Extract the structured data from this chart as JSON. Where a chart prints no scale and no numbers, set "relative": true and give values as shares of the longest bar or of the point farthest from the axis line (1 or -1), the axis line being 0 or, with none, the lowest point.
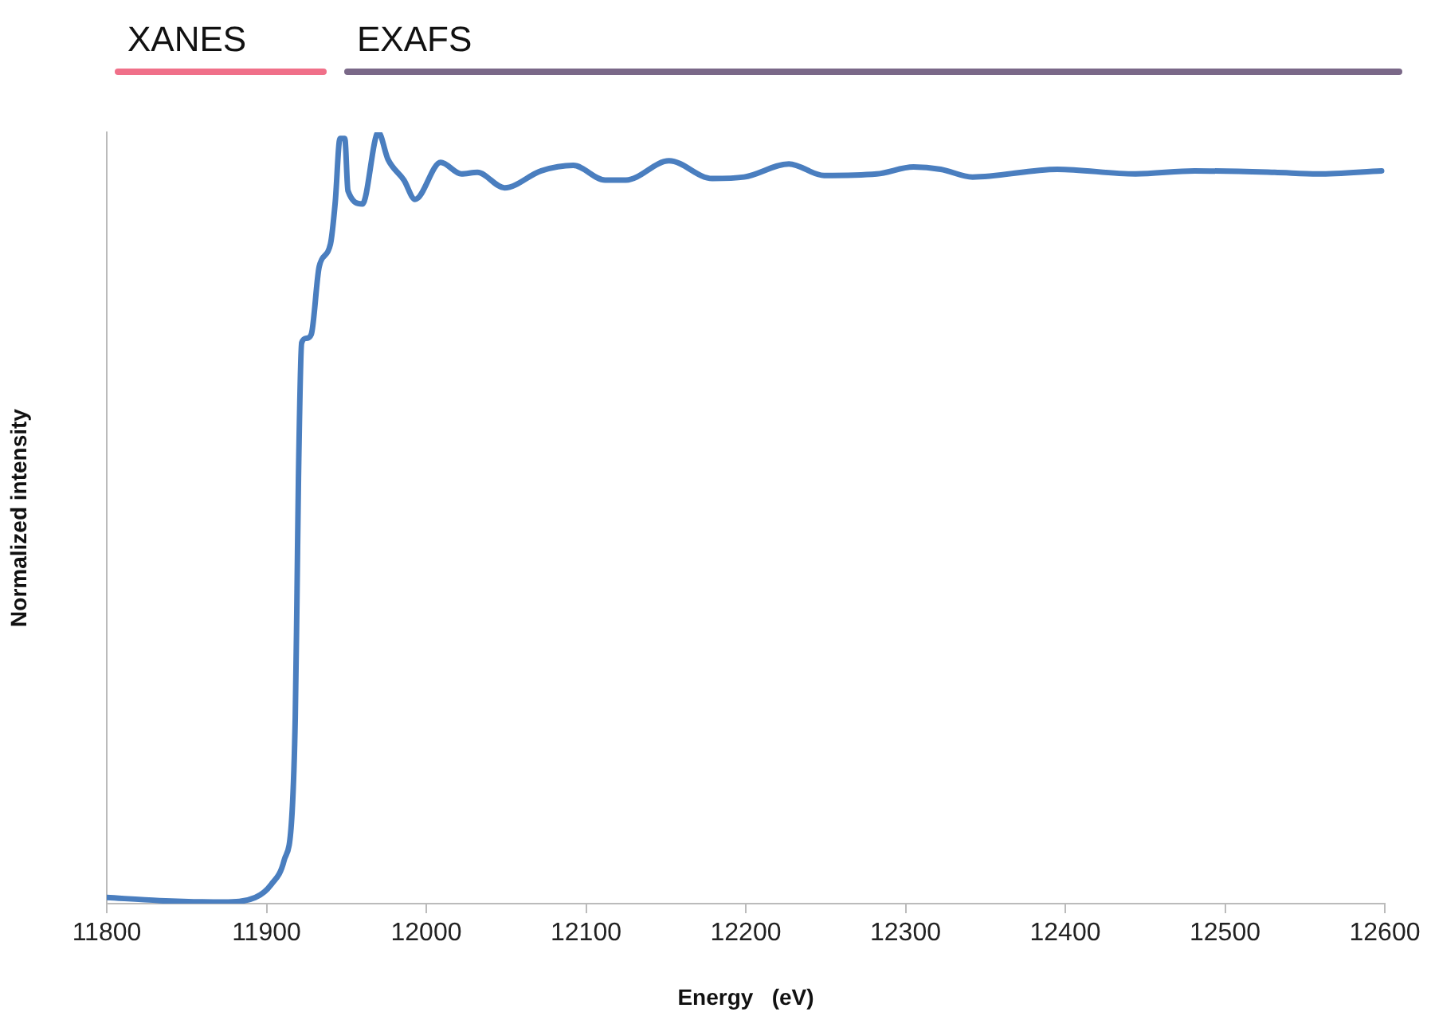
{
  "chart_data": {
    "type": "line",
    "relative": true,
    "xlabel": "Energy   (eV)",
    "ylabel": "Normalized intensity",
    "xlim": [
      11800,
      12600
    ],
    "xticks": [
      11800,
      11900,
      12000,
      12100,
      12200,
      12300,
      12400,
      12500,
      12600
    ],
    "grid": false,
    "legend": false,
    "marker": "none",
    "line_style": "solid",
    "annotations": [
      "XANES",
      "EXAFS"
    ],
    "series": [
      {
        "color": "#4a7ebf",
        "x": [
          11800,
          11833,
          11873,
          11893,
          11903,
          11911,
          11916,
          11918,
          11919,
          11920,
          11922,
          11925,
          11928,
          11933,
          11940,
          11943,
          11946,
          11949,
          11951,
          11960,
          11970,
          11976,
          11986,
          11993,
          12009,
          12022,
          12032,
          12049,
          12072,
          12092,
          12112,
          12125,
          12152,
          12179,
          12199,
          12227,
          12249,
          12282,
          12305,
          12322,
          12342,
          12395,
          12444,
          12481,
          12531,
          12558,
          12598
        ],
        "values": [
          0.008,
          0.004,
          0.002,
          0.008,
          0.025,
          0.056,
          0.118,
          0.242,
          0.386,
          0.552,
          0.727,
          0.733,
          0.738,
          0.826,
          0.855,
          0.909,
          0.992,
          0.992,
          0.924,
          0.907,
          1.0,
          0.965,
          0.938,
          0.913,
          0.961,
          0.946,
          0.948,
          0.928,
          0.95,
          0.957,
          0.938,
          0.938,
          0.963,
          0.94,
          0.942,
          0.959,
          0.944,
          0.946,
          0.955,
          0.952,
          0.942,
          0.952,
          0.946,
          0.95,
          0.948,
          0.946,
          0.95
        ]
      }
    ]
  }
}
